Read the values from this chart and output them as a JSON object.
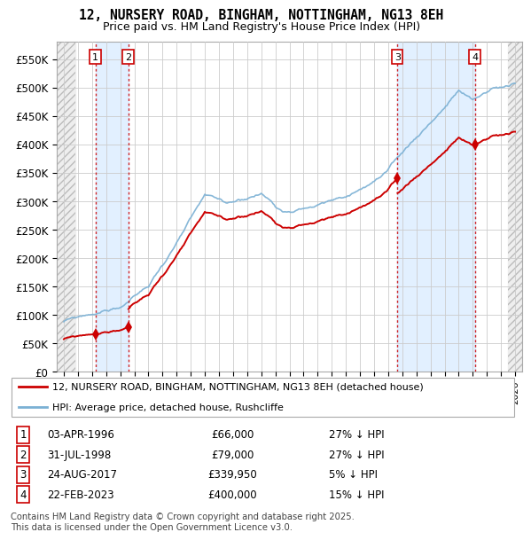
{
  "title_line1": "12, NURSERY ROAD, BINGHAM, NOTTINGHAM, NG13 8EH",
  "title_line2": "Price paid vs. HM Land Registry's House Price Index (HPI)",
  "legend_label1": "12, NURSERY ROAD, BINGHAM, NOTTINGHAM, NG13 8EH (detached house)",
  "legend_label2": "HPI: Average price, detached house, Rushcliffe",
  "footer": "Contains HM Land Registry data © Crown copyright and database right 2025.\nThis data is licensed under the Open Government Licence v3.0.",
  "transactions": [
    {
      "num": 1,
      "date": "03-APR-1996",
      "date_x": 1996.25,
      "price": 66000,
      "pct": "27% ↓ HPI"
    },
    {
      "num": 2,
      "date": "31-JUL-1998",
      "date_x": 1998.58,
      "price": 79000,
      "pct": "27% ↓ HPI"
    },
    {
      "num": 3,
      "date": "24-AUG-2017",
      "date_x": 2017.65,
      "price": 339950,
      "pct": "5% ↓ HPI"
    },
    {
      "num": 4,
      "date": "22-FEB-2023",
      "date_x": 2023.14,
      "price": 400000,
      "pct": "15% ↓ HPI"
    }
  ],
  "xlim": [
    1993.5,
    2026.5
  ],
  "ylim": [
    0,
    580000
  ],
  "yticks": [
    0,
    50000,
    100000,
    150000,
    200000,
    250000,
    300000,
    350000,
    400000,
    450000,
    500000,
    550000
  ],
  "ytick_labels": [
    "£0",
    "£50K",
    "£100K",
    "£150K",
    "£200K",
    "£250K",
    "£300K",
    "£350K",
    "£400K",
    "£450K",
    "£500K",
    "£550K"
  ],
  "hpi_color": "#7ab0d4",
  "price_color": "#cc0000",
  "shade_color": "#ddeeff",
  "hatch_color": "#cccccc"
}
